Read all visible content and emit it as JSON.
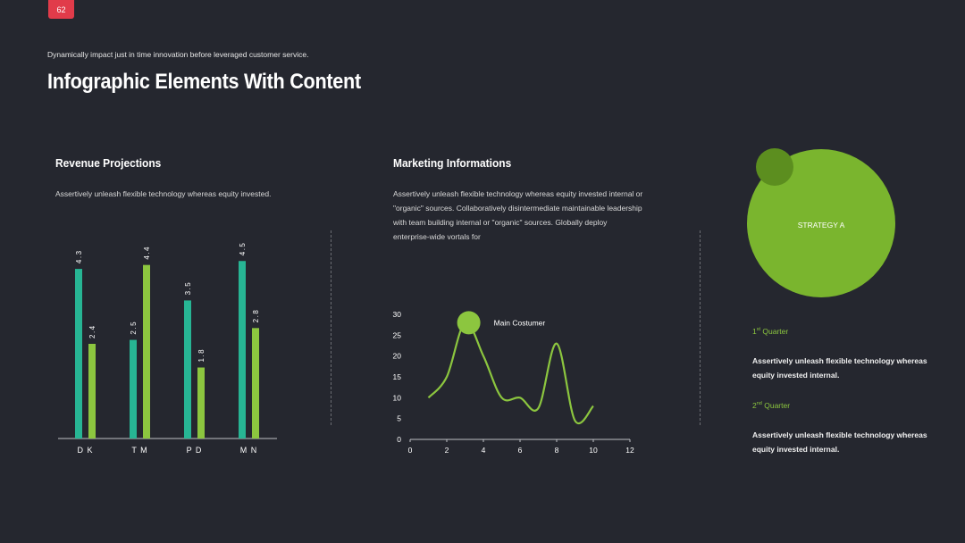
{
  "page_number": "62",
  "tagline": "Dynamically impact just in time innovation before leveraged customer service.",
  "title": "Infographic Elements With Content",
  "revenue": {
    "title": "Revenue Projections",
    "text": "Assertively unleash flexible technology whereas equity invested."
  },
  "marketing": {
    "title": "Marketing Informations",
    "text_lines": [
      "Assertively unleash flexible technology whereas equity invested internal or",
      "\"organic\" sources. Collaboratively disintermediate maintainable leadership",
      "with team building internal or \"organic\" sources. Globally deploy",
      "enterprise-wide vortals for"
    ]
  },
  "strategy": {
    "label": "STRATEGY A",
    "q1": {
      "num": "1",
      "sup": "st",
      "word": "Quarter",
      "text_lines": [
        "Assertively unleash flexible technology whereas",
        "equity invested internal."
      ]
    },
    "q2": {
      "num": "2",
      "sup": "nd",
      "word": "Quarter",
      "text_lines": [
        "Assertively unleash flexible technology whereas",
        "equity invested internal."
      ]
    }
  },
  "colors": {
    "background": "#25272f",
    "teal": "#27b594",
    "green": "#8cc63f",
    "circle": "#7ab52e",
    "circle_small": "#5c8e1f",
    "badge": "#e13b4a"
  },
  "chart_data": [
    {
      "type": "bar",
      "categories": [
        "D K",
        "T M",
        "P D",
        "M N"
      ],
      "series": [
        {
          "values": [
            4.3,
            2.5,
            3.5,
            4.5
          ]
        },
        {
          "values": [
            2.4,
            4.4,
            1.8,
            2.8
          ]
        }
      ],
      "value_labels": [
        [
          "4.3",
          "2.5",
          "3.5",
          "4.5"
        ],
        [
          "2.4",
          "4.4",
          "1.8",
          "2.8"
        ]
      ],
      "ylim": [
        0,
        4.8
      ]
    },
    {
      "type": "line",
      "annotation": "Main Costumer",
      "x_ticks": [
        "0",
        "2",
        "4",
        "6",
        "8",
        "10",
        "12"
      ],
      "y_ticks": [
        "0",
        "5",
        "10",
        "15",
        "20",
        "25",
        "30"
      ],
      "xlim": [
        0,
        12
      ],
      "ylim": [
        0,
        30
      ],
      "points": [
        [
          1,
          10
        ],
        [
          2,
          15
        ],
        [
          3,
          28
        ],
        [
          4,
          20
        ],
        [
          5,
          10
        ],
        [
          6,
          10
        ],
        [
          7,
          7.5
        ],
        [
          8,
          23
        ],
        [
          9,
          4.5
        ],
        [
          10,
          8
        ]
      ],
      "highlight_point": [
        3.2,
        28
      ]
    }
  ]
}
